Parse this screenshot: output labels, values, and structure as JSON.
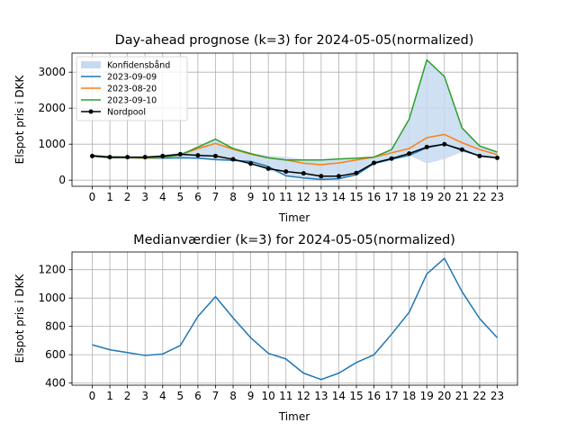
{
  "chart_data": [
    {
      "type": "line",
      "title": "Day-ahead prognose (k=3) for 2024-05-05(normalized)",
      "xlabel": "Timer",
      "ylabel": "Elspot pris i DKK",
      "x": [
        0,
        1,
        2,
        3,
        4,
        5,
        6,
        7,
        8,
        9,
        10,
        11,
        12,
        13,
        14,
        15,
        16,
        17,
        18,
        19,
        20,
        21,
        22,
        23
      ],
      "xlim": [
        -1.15,
        24.15
      ],
      "ylim": [
        -170,
        3530
      ],
      "yticks": [
        0,
        1000,
        2000,
        3000
      ],
      "grid": true,
      "legend": "top-left",
      "band": {
        "name": "Konfidensbånd",
        "color": "#c6dbef",
        "lower": [
          660,
          620,
          610,
          600,
          600,
          610,
          600,
          570,
          540,
          450,
          280,
          130,
          60,
          20,
          40,
          150,
          460,
          580,
          690,
          460,
          590,
          780,
          660,
          610
        ],
        "upper": [
          690,
          650,
          650,
          650,
          700,
          760,
          900,
          1150,
          890,
          740,
          680,
          650,
          580,
          560,
          590,
          610,
          640,
          850,
          1700,
          3340,
          2880,
          1450,
          950,
          790
        ]
      },
      "series": [
        {
          "name": "2023-09-09",
          "color": "#1f77b4",
          "marker": "none",
          "values": [
            670,
            620,
            620,
            610,
            610,
            620,
            610,
            570,
            550,
            520,
            380,
            120,
            60,
            20,
            40,
            150,
            460,
            580,
            690,
            900,
            1000,
            830,
            680,
            620
          ]
        },
        {
          "name": "2023-08-20",
          "color": "#ff7f0e",
          "marker": "none",
          "values": [
            670,
            630,
            630,
            610,
            630,
            700,
            880,
            1020,
            860,
            720,
            620,
            560,
            470,
            430,
            480,
            560,
            640,
            760,
            880,
            1180,
            1270,
            1040,
            850,
            710
          ]
        },
        {
          "name": "2023-09-10",
          "color": "#2ca02c",
          "marker": "none",
          "values": [
            690,
            650,
            640,
            620,
            640,
            700,
            920,
            1140,
            880,
            740,
            620,
            560,
            560,
            560,
            590,
            610,
            640,
            850,
            1700,
            3340,
            2880,
            1450,
            950,
            780
          ]
        },
        {
          "name": "Nordpool",
          "color": "#000000",
          "marker": "dot",
          "values": [
            670,
            640,
            640,
            640,
            670,
            720,
            690,
            670,
            580,
            460,
            320,
            240,
            190,
            110,
            110,
            200,
            480,
            600,
            740,
            920,
            1000,
            850,
            670,
            620
          ]
        }
      ]
    },
    {
      "type": "line",
      "title": "Medianværdier (k=3) for 2024-05-05(normalized)",
      "xlabel": "Timer",
      "ylabel": "Elspot pris i DKK",
      "x": [
        0,
        1,
        2,
        3,
        4,
        5,
        6,
        7,
        8,
        9,
        10,
        11,
        12,
        13,
        14,
        15,
        16,
        17,
        18,
        19,
        20,
        21,
        22,
        23
      ],
      "xlim": [
        -1.15,
        24.15
      ],
      "ylim": [
        385,
        1325
      ],
      "yticks": [
        400,
        600,
        800,
        1000,
        1200
      ],
      "grid": true,
      "series": [
        {
          "name": "",
          "color": "#1f77b4",
          "marker": "none",
          "values": [
            670,
            635,
            615,
            595,
            605,
            665,
            870,
            1010,
            860,
            720,
            610,
            570,
            470,
            425,
            470,
            545,
            600,
            745,
            900,
            1170,
            1280,
            1045,
            855,
            720
          ]
        }
      ]
    }
  ]
}
